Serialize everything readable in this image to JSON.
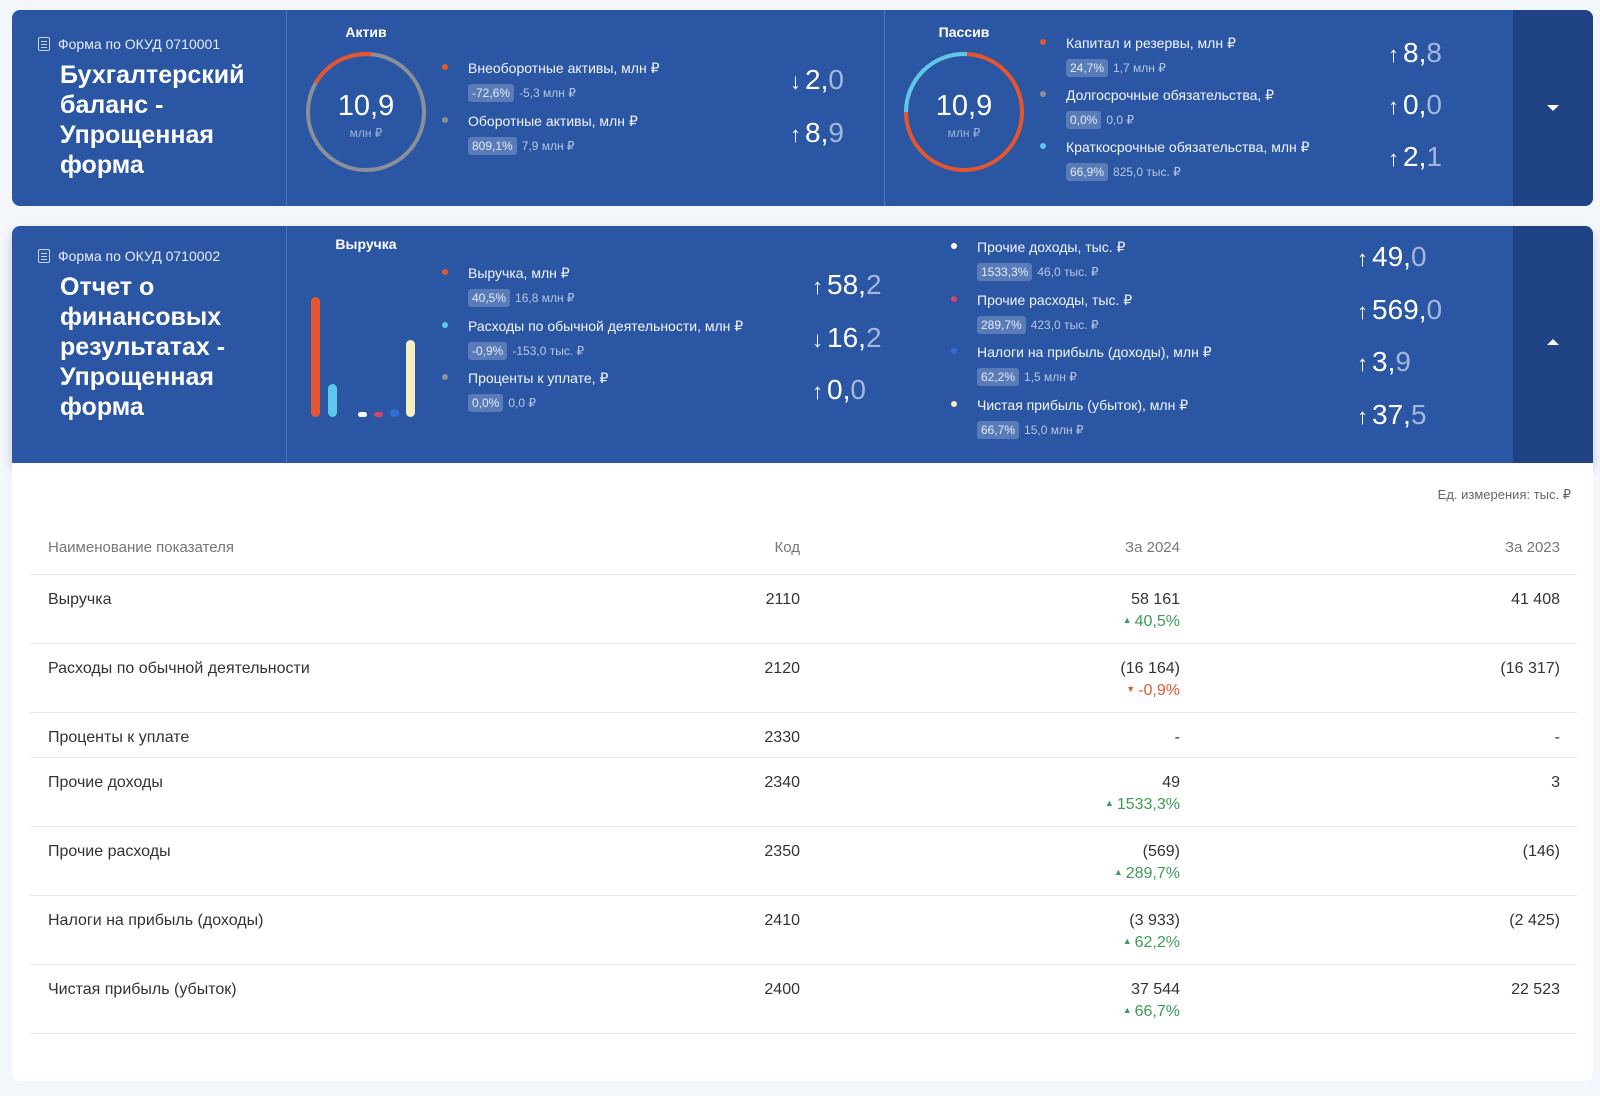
{
  "balance": {
    "form_code": "Форма по ОКУД 0710001",
    "title": "Бухгалтерский баланс - Упрощенная форма",
    "aktiv": {
      "title": "Актив",
      "value": "10,9",
      "unit": "млн ₽",
      "items": [
        {
          "label": "Внеоборотные активы, млн ₽",
          "pct": "-72,6%",
          "sub": "-5,3 млн ₽",
          "arrow": "↓",
          "int": "2,",
          "dec": "0",
          "color": "#e4572e"
        },
        {
          "label": "Оборотные активы, млн ₽",
          "pct": "809,1%",
          "sub": "7,9 млн ₽",
          "arrow": "↑",
          "int": "8,",
          "dec": "9",
          "color": "#8a8f9a"
        }
      ]
    },
    "passiv": {
      "title": "Пассив",
      "value": "10,9",
      "unit": "млн ₽",
      "items": [
        {
          "label": "Капитал и резервы, млн ₽",
          "pct": "24,7%",
          "sub": "1,7 млн ₽",
          "arrow": "↑",
          "int": "8,",
          "dec": "8",
          "color": "#e4572e"
        },
        {
          "label": "Долгосрочные обязательства, ₽",
          "pct": "0,0%",
          "sub": "0,0 ₽",
          "arrow": "↑",
          "int": "0,",
          "dec": "0",
          "color": "#8a8f9a"
        },
        {
          "label": "Краткосрочные обязательства, млн ₽",
          "pct": "66,9%",
          "sub": "825,0 тыс. ₽",
          "arrow": "↑",
          "int": "2,",
          "dec": "1",
          "color": "#5bc8ec"
        }
      ]
    }
  },
  "pnl": {
    "form_code": "Форма по ОКУД 0710002",
    "title": "Отчет о финансовых результатах - Упрощенная форма",
    "chart_title": "Выручка",
    "left_items": [
      {
        "label": "Выручка, млн ₽",
        "pct": "40,5%",
        "sub": "16,8 млн ₽",
        "arrow": "↑",
        "int": "58,",
        "dec": "2",
        "color": "#e4572e"
      },
      {
        "label": "Расходы по обычной деятельности, млн ₽",
        "pct": "-0,9%",
        "sub": "-153,0 тыс. ₽",
        "arrow": "↓",
        "int": "16,",
        "dec": "2",
        "color": "#5bc8ec"
      },
      {
        "label": "Проценты к уплате, ₽",
        "pct": "0,0%",
        "sub": "0,0 ₽",
        "arrow": "↑",
        "int": "0,",
        "dec": "0",
        "color": "#8a8f9a"
      }
    ],
    "right_items": [
      {
        "label": "Прочие доходы, тыс. ₽",
        "pct": "1533,3%",
        "sub": "46,0 тыс. ₽",
        "arrow": "↑",
        "int": "49,",
        "dec": "0",
        "color": "#ffffff"
      },
      {
        "label": "Прочие расходы, тыс. ₽",
        "pct": "289,7%",
        "sub": "423,0 тыс. ₽",
        "arrow": "↑",
        "int": "569,",
        "dec": "0",
        "color": "#d2466e"
      },
      {
        "label": "Налоги на прибыль (доходы), млн ₽",
        "pct": "62,2%",
        "sub": "1,5 млн ₽",
        "arrow": "↑",
        "int": "3,",
        "dec": "9",
        "color": "#2f6fd8"
      },
      {
        "label": "Чистая прибыль (убыток), млн ₽",
        "pct": "66,7%",
        "sub": "15,0 млн ₽",
        "arrow": "↑",
        "int": "37,",
        "dec": "5",
        "color": "#f6efbf"
      }
    ],
    "bars": [
      {
        "name": "Выручка",
        "value": 58.2,
        "color": "#e4572e"
      },
      {
        "name": "Расходы",
        "value": 16.2,
        "color": "#5bc8ec"
      },
      {
        "name": "Проценты",
        "value": 0,
        "color": "#8a8f9a"
      },
      {
        "name": "Прочие доходы",
        "value": 0.05,
        "color": "#ffffff"
      },
      {
        "name": "Прочие расходы",
        "value": 0.57,
        "color": "#d2466e"
      },
      {
        "name": "Налоги",
        "value": 3.9,
        "color": "#2f6fd8"
      },
      {
        "name": "Чистая прибыль",
        "value": 37.5,
        "color": "#f6efbf"
      }
    ]
  },
  "table": {
    "unit_note": "Ед. измерения: тыс. ₽",
    "headers": {
      "name": "Наименование показателя",
      "code": "Код",
      "y2024": "За 2024",
      "y2023": "За 2023"
    },
    "rows": [
      {
        "name": "Выручка",
        "code": "2110",
        "v2024": "58 161",
        "change": "40,5%",
        "dir": "up",
        "v2023": "41 408"
      },
      {
        "name": "Расходы по обычной деятельности",
        "code": "2120",
        "v2024": "(16 164)",
        "change": "-0,9%",
        "dir": "down",
        "v2023": "(16 317)"
      },
      {
        "name": "Проценты к уплате",
        "code": "2330",
        "v2024": "-",
        "change": "",
        "dir": "",
        "v2023": "-"
      },
      {
        "name": "Прочие доходы",
        "code": "2340",
        "v2024": "49",
        "change": "1533,3%",
        "dir": "up",
        "v2023": "3"
      },
      {
        "name": "Прочие расходы",
        "code": "2350",
        "v2024": "(569)",
        "change": "289,7%",
        "dir": "up",
        "v2023": "(146)"
      },
      {
        "name": "Налоги на прибыль (доходы)",
        "code": "2410",
        "v2024": "(3 933)",
        "change": "62,2%",
        "dir": "up",
        "v2023": "(2 425)"
      },
      {
        "name": "Чистая прибыль (убыток)",
        "code": "2400",
        "v2024": "37 544",
        "change": "66,7%",
        "dir": "up",
        "v2023": "22 523"
      }
    ]
  }
}
